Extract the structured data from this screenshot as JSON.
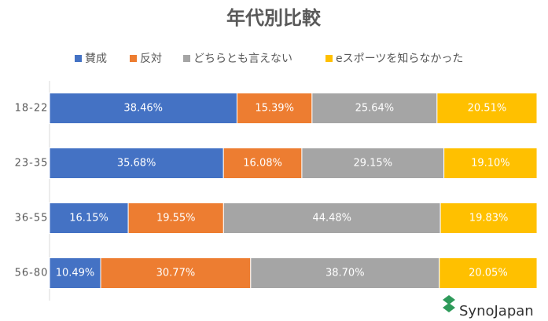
{
  "chart_data": {
    "type": "stacked-bar-horizontal",
    "title": "年代別比較",
    "categories": [
      "18-22",
      "23-35",
      "36-55",
      "56-80"
    ],
    "xlim": [
      0,
      100
    ],
    "series": [
      {
        "name": "賛成",
        "color": "#4472c4",
        "values": [
          38.46,
          35.68,
          16.15,
          10.49
        ],
        "value_labels": [
          "38.46%",
          "35.68%",
          "16.15%",
          "10.49%"
        ]
      },
      {
        "name": "反対",
        "color": "#ed7d31",
        "values": [
          15.39,
          16.08,
          19.55,
          30.77
        ],
        "value_labels": [
          "15.39%",
          "16.08%",
          "19.55%",
          "30.77%"
        ]
      },
      {
        "name": "どちらとも言えない",
        "color": "#a5a5a5",
        "values": [
          25.64,
          29.15,
          44.48,
          38.7
        ],
        "value_labels": [
          "25.64%",
          "29.15%",
          "44.48%",
          "38.70%"
        ]
      },
      {
        "name": "eスポーツを知らなかった",
        "color": "#ffc000",
        "values": [
          20.51,
          19.1,
          19.83,
          20.05
        ],
        "value_labels": [
          "20.51%",
          "19.10%",
          "19.83%",
          "20.05%"
        ]
      }
    ],
    "legend": "top",
    "watermark": "SynoJapan"
  }
}
